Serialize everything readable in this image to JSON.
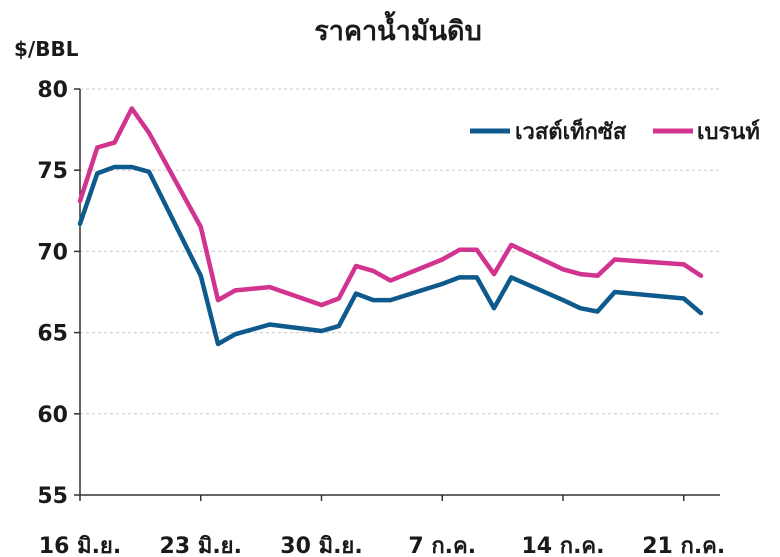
{
  "chart_data": {
    "type": "line",
    "title": "ราคาน้ำมันดิบ",
    "ylabel": "$/BBL",
    "ylim": [
      55,
      80
    ],
    "yticks": [
      55,
      60,
      65,
      70,
      75,
      80
    ],
    "grid": true,
    "legend_position": "top-right",
    "xtick_labels": [
      "16 มิ.ย.",
      "23 มิ.ย.",
      "30 มิ.ย.",
      "7 ก.ค.",
      "14 ก.ค.",
      "21 ก.ค."
    ],
    "xtick_days": [
      0,
      7,
      14,
      21,
      28,
      35
    ],
    "x_days": [
      0,
      1,
      2,
      3,
      4,
      7,
      8,
      9,
      11,
      14,
      15,
      16,
      17,
      18,
      21,
      22,
      23,
      24,
      25,
      28,
      29,
      30,
      31,
      35,
      36
    ],
    "series": [
      {
        "name": "เวสต์เท็กซัส",
        "color": "#0f5a8c",
        "values": [
          71.7,
          74.8,
          75.2,
          75.2,
          74.9,
          68.5,
          64.3,
          64.9,
          65.5,
          65.1,
          65.4,
          67.4,
          67.0,
          67.0,
          68.0,
          68.4,
          68.4,
          66.5,
          68.4,
          67.0,
          66.5,
          66.3,
          67.5,
          67.1,
          66.2
        ]
      },
      {
        "name": "เบรนท์",
        "color": "#d1338f",
        "values": [
          73.1,
          76.4,
          76.7,
          78.8,
          77.3,
          71.5,
          67.0,
          67.6,
          67.8,
          66.7,
          67.1,
          69.1,
          68.8,
          68.2,
          69.5,
          70.1,
          70.1,
          68.6,
          70.4,
          68.9,
          68.6,
          68.5,
          69.5,
          69.2,
          68.5
        ]
      }
    ]
  }
}
